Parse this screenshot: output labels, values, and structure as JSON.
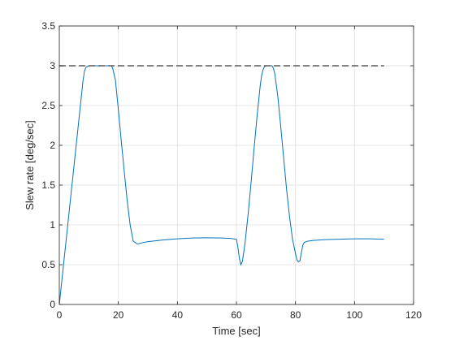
{
  "chart_data": {
    "type": "line",
    "title": "",
    "xlabel": "Time [sec]",
    "ylabel": "Slew rate [deg/sec]",
    "xlim": [
      0,
      120
    ],
    "ylim": [
      0,
      3.5
    ],
    "xticks": [
      0,
      20,
      40,
      60,
      80,
      100,
      120
    ],
    "yticks": [
      0,
      0.5,
      1,
      1.5,
      2,
      2.5,
      3,
      3.5
    ],
    "xtick_labels": [
      "0",
      "20",
      "40",
      "60",
      "80",
      "100",
      "120"
    ],
    "ytick_labels": [
      "0",
      "0.5",
      "1",
      "1.5",
      "2",
      "2.5",
      "3",
      "3.5"
    ],
    "grid": true,
    "series": [
      {
        "color": "#0072bd",
        "style": "solid",
        "x": [
          0,
          2,
          4,
          6,
          7,
          8,
          8.5,
          9,
          10,
          12,
          14,
          16,
          17,
          17.5,
          18,
          19,
          20,
          21,
          22,
          23,
          24,
          25,
          26,
          26.5,
          28,
          30,
          35,
          40,
          45,
          50,
          55,
          58,
          60,
          60.5,
          61,
          61.5,
          62,
          62.5,
          63,
          64,
          65,
          66,
          67,
          68,
          68.5,
          69,
          69.5,
          70,
          71,
          72,
          72.5,
          73,
          74,
          75,
          76,
          77,
          78,
          79,
          80,
          80.5,
          81,
          81.5,
          82,
          82.5,
          83,
          84,
          86,
          90,
          95,
          100,
          105,
          110
        ],
        "y": [
          0,
          0.7,
          1.4,
          2.1,
          2.45,
          2.8,
          2.93,
          2.98,
          3.0,
          3.0,
          3.0,
          3.0,
          3.0,
          3.0,
          2.98,
          2.82,
          2.45,
          2.05,
          1.67,
          1.3,
          1.0,
          0.8,
          0.77,
          0.76,
          0.775,
          0.79,
          0.81,
          0.825,
          0.835,
          0.838,
          0.835,
          0.83,
          0.82,
          0.72,
          0.58,
          0.5,
          0.54,
          0.66,
          0.8,
          1.15,
          1.55,
          1.97,
          2.37,
          2.73,
          2.87,
          2.95,
          2.99,
          3.0,
          3.0,
          3.0,
          2.97,
          2.9,
          2.62,
          2.24,
          1.84,
          1.44,
          1.1,
          0.82,
          0.64,
          0.56,
          0.535,
          0.55,
          0.65,
          0.75,
          0.78,
          0.795,
          0.805,
          0.815,
          0.82,
          0.825,
          0.825,
          0.82
        ]
      },
      {
        "color": "#595959",
        "style": "dashed",
        "x": [
          0,
          110
        ],
        "y": [
          3.0,
          3.0
        ]
      }
    ]
  }
}
